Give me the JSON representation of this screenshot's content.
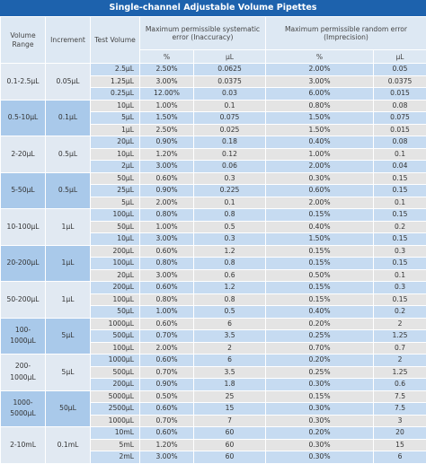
{
  "table": {
    "title": "Single-channel Adjustable Volume Pipettes",
    "header": [
      "Volume Range",
      "Increment",
      "Test Volume",
      "Maximum permissible systematic error (Inaccuracy)",
      "Maximum permissible random error (Imprecision)"
    ],
    "subheader": [
      "%",
      "µL",
      "%",
      "µL"
    ],
    "groups": [
      {
        "range": "0.1-2.5µL",
        "increment": "0.05µL",
        "rows": [
          [
            "2.5µL",
            "2.50%",
            "0.0625",
            "2.00%",
            "0.05"
          ],
          [
            "1.25µL",
            "3.00%",
            "0.0375",
            "3.00%",
            "0.0375"
          ],
          [
            "0.25µL",
            "12.00%",
            "0.03",
            "6.00%",
            "0.015"
          ]
        ]
      },
      {
        "range": "0.5-10µL",
        "increment": "0.1µL",
        "rows": [
          [
            "10µL",
            "1.00%",
            "0.1",
            "0.80%",
            "0.08"
          ],
          [
            "5µL",
            "1.50%",
            "0.075",
            "1.50%",
            "0.075"
          ],
          [
            "1µL",
            "2.50%",
            "0.025",
            "1.50%",
            "0.015"
          ]
        ]
      },
      {
        "range": "2-20µL",
        "increment": "0.5µL",
        "rows": [
          [
            "20µL",
            "0.90%",
            "0.18",
            "0.40%",
            "0.08"
          ],
          [
            "10µL",
            "1.20%",
            "0.12",
            "1.00%",
            "0.1"
          ],
          [
            "2µL",
            "3.00%",
            "0.06",
            "2.00%",
            "0.04"
          ]
        ]
      },
      {
        "range": "5-50µL",
        "increment": "0.5µL",
        "rows": [
          [
            "50µL",
            "0.60%",
            "0.3",
            "0.30%",
            "0.15"
          ],
          [
            "25µL",
            "0.90%",
            "0.225",
            "0.60%",
            "0.15"
          ],
          [
            "5µL",
            "2.00%",
            "0.1",
            "2.00%",
            "0.1"
          ]
        ]
      },
      {
        "range": "10-100µL",
        "increment": "1µL",
        "rows": [
          [
            "100µL",
            "0.80%",
            "0.8",
            "0.15%",
            "0.15"
          ],
          [
            "50µL",
            "1.00%",
            "0.5",
            "0.40%",
            "0.2"
          ],
          [
            "10µL",
            "3.00%",
            "0.3",
            "1.50%",
            "0.15"
          ]
        ]
      },
      {
        "range": "20-200µL",
        "increment": "1µL",
        "rows": [
          [
            "200µL",
            "0.60%",
            "1.2",
            "0.15%",
            "0.3"
          ],
          [
            "100µL",
            "0.80%",
            "0.8",
            "0.15%",
            "0.15"
          ],
          [
            "20µL",
            "3.00%",
            "0.6",
            "0.50%",
            "0.1"
          ]
        ]
      },
      {
        "range": "50-200µL",
        "increment": "1µL",
        "rows": [
          [
            "200µL",
            "0.60%",
            "1.2",
            "0.15%",
            "0.3"
          ],
          [
            "100µL",
            "0.80%",
            "0.8",
            "0.15%",
            "0.15"
          ],
          [
            "50µL",
            "1.00%",
            "0.5",
            "0.40%",
            "0.2"
          ]
        ]
      },
      {
        "range": "100-1000µL",
        "increment": "5µL",
        "rows": [
          [
            "1000µL",
            "0.60%",
            "6",
            "0.20%",
            "2"
          ],
          [
            "500µL",
            "0.70%",
            "3.5",
            "0.25%",
            "1.25"
          ],
          [
            "100µL",
            "2.00%",
            "2",
            "0.70%",
            "0.7"
          ]
        ]
      },
      {
        "range": "200-1000µL",
        "increment": "5µL",
        "rows": [
          [
            "1000µL",
            "0.60%",
            "6",
            "0.20%",
            "2"
          ],
          [
            "500µL",
            "0.70%",
            "3.5",
            "0.25%",
            "1.25"
          ],
          [
            "200µL",
            "0.90%",
            "1.8",
            "0.30%",
            "0.6"
          ]
        ]
      },
      {
        "range": "1000-5000µL",
        "increment": "50µL",
        "rows": [
          [
            "5000µL",
            "0.50%",
            "25",
            "0.15%",
            "7.5"
          ],
          [
            "2500µL",
            "0.60%",
            "15",
            "0.30%",
            "7.5"
          ],
          [
            "1000µL",
            "0.70%",
            "7",
            "0.30%",
            "3"
          ]
        ]
      },
      {
        "range": "2-10mL",
        "increment": "0.1mL",
        "rows": [
          [
            "10mL",
            "0.60%",
            "60",
            "0.20%",
            "20"
          ],
          [
            "5mL",
            "1.20%",
            "60",
            "0.30%",
            "15"
          ],
          [
            "2mL",
            "3.00%",
            "60",
            "0.30%",
            "6"
          ]
        ]
      }
    ]
  }
}
